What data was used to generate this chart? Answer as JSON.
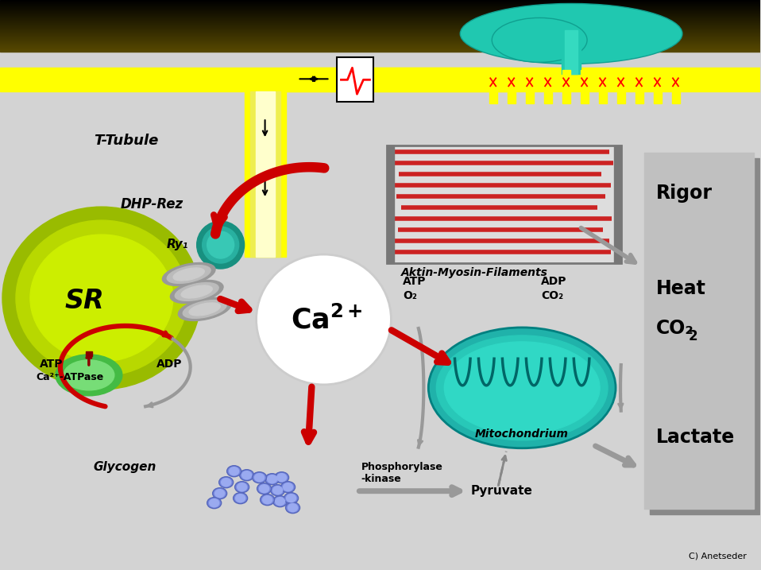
{
  "bg_color": "#d3d3d3",
  "membrane_yellow": "#ffff00",
  "mito_color": "#20b2aa",
  "mito_dark": "#008080",
  "glycogen_color": "#6a7acd",
  "filament_red": "#cc2222",
  "arrow_red": "#cc0000",
  "arrow_gray": "#999999",
  "panel_color": "#c0c0c0",
  "labels": {
    "T_Tubule": "T-Tubule",
    "DHP_Rez": "DHP-Rez",
    "Ry1": "Ry₁",
    "SR": "SR",
    "ATP_left": "ATP",
    "Ca2_ATPase": "Ca²⁺-ATPase",
    "ADP_left": "ADP",
    "Aktin": "Aktin-Myosin-Filaments",
    "ATP_right": "ATP",
    "O2": "O₂",
    "ADP_right": "ADP",
    "CO2_right": "CO₂",
    "Mito": "Mitochondrium",
    "Glycogen": "Glycogen",
    "Phosphorylase": "Phosphorylase\n-kinase",
    "Pyruvate": "Pyruvate",
    "Rigor": "Rigor",
    "Heat": "Heat",
    "CO2_panel": "CO₂",
    "Lactate": "Lactate",
    "credit": "C) Anetseder"
  }
}
